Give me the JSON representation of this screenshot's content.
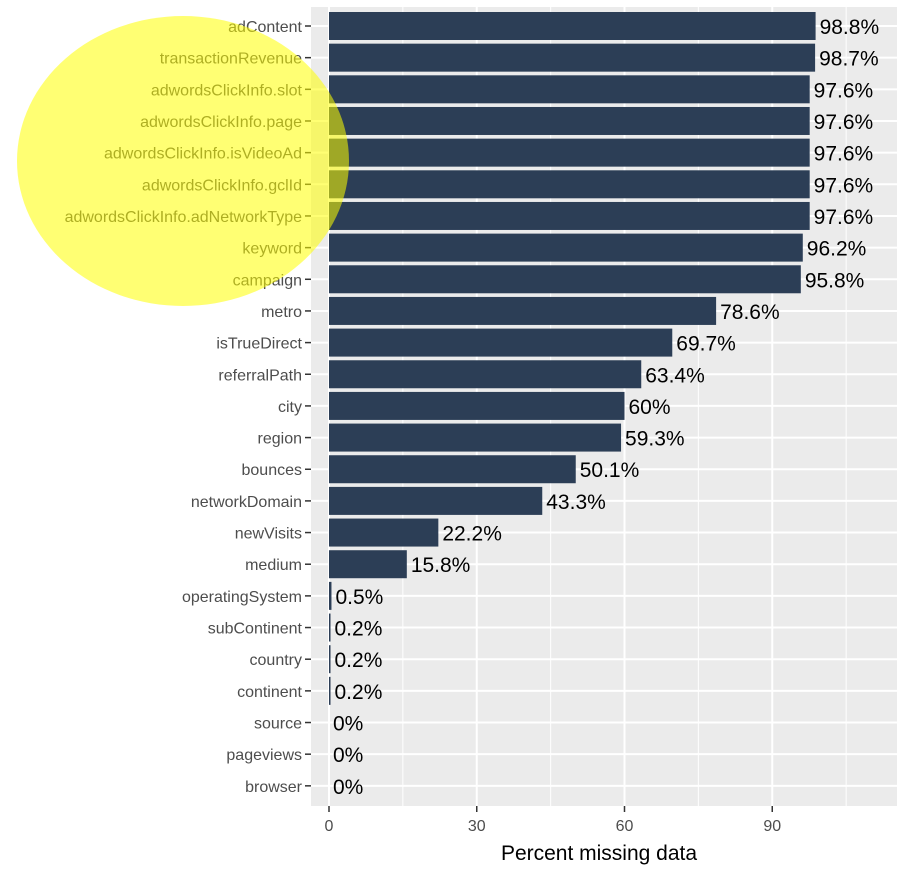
{
  "chart_data": {
    "type": "bar",
    "orientation": "horizontal",
    "categories": [
      "adContent",
      "transactionRevenue",
      "adwordsClickInfo.slot",
      "adwordsClickInfo.page",
      "adwordsClickInfo.isVideoAd",
      "adwordsClickInfo.gclId",
      "adwordsClickInfo.adNetworkType",
      "keyword",
      "campaign",
      "metro",
      "isTrueDirect",
      "referralPath",
      "city",
      "region",
      "bounces",
      "networkDomain",
      "newVisits",
      "medium",
      "operatingSystem",
      "subContinent",
      "country",
      "continent",
      "source",
      "pageviews",
      "browser"
    ],
    "values": [
      98.8,
      98.7,
      97.6,
      97.6,
      97.6,
      97.6,
      97.6,
      96.2,
      95.8,
      78.6,
      69.7,
      63.4,
      60,
      59.3,
      50.1,
      43.3,
      22.2,
      15.8,
      0.5,
      0.2,
      0.2,
      0.2,
      0,
      0,
      0
    ],
    "labels": [
      "98.8%",
      "98.7%",
      "97.6%",
      "97.6%",
      "97.6%",
      "97.6%",
      "97.6%",
      "96.2%",
      "95.8%",
      "78.6%",
      "69.7%",
      "63.4%",
      "60%",
      "59.3%",
      "50.1%",
      "43.3%",
      "22.2%",
      "15.8%",
      "0.5%",
      "0.2%",
      "0.2%",
      "0.2%",
      "0%",
      "0%",
      "0%"
    ],
    "xlabel": "Percent missing data",
    "ylabel": "",
    "xlim": [
      -2.4,
      116
    ],
    "xticks": [
      0,
      30,
      60,
      90
    ],
    "grid": true,
    "colors": {
      "bar": "#2c3e56",
      "panel": "#ebebeb",
      "grid": "#ffffff",
      "highlight": "#ffff00",
      "text": "#000000",
      "tick_text": "#4d4d4d"
    },
    "highlight_shape": "ellipse"
  }
}
